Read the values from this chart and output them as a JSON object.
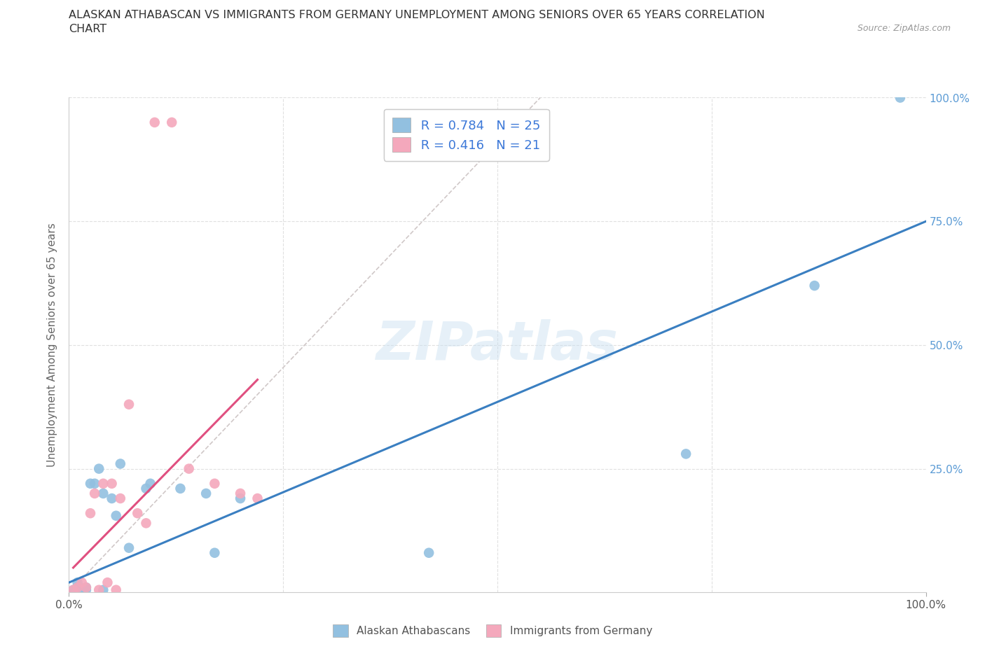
{
  "title_line1": "ALASKAN ATHABASCAN VS IMMIGRANTS FROM GERMANY UNEMPLOYMENT AMONG SENIORS OVER 65 YEARS CORRELATION",
  "title_line2": "CHART",
  "source_text": "Source: ZipAtlas.com",
  "ylabel": "Unemployment Among Seniors over 65 years",
  "xmin": 0.0,
  "xmax": 1.0,
  "ymin": 0.0,
  "ymax": 1.0,
  "xtick_labels": [
    "0.0%",
    "100.0%"
  ],
  "ytick_labels": [
    "25.0%",
    "50.0%",
    "75.0%",
    "100.0%"
  ],
  "ytick_positions": [
    0.25,
    0.5,
    0.75,
    1.0
  ],
  "legend_label_blue": "Alaskan Athabascans",
  "legend_label_pink": "Immigrants from Germany",
  "R_blue": 0.784,
  "N_blue": 25,
  "R_pink": 0.416,
  "N_pink": 21,
  "color_blue": "#92c0e0",
  "color_pink": "#f4a8bc",
  "color_trendline_blue": "#3a7fc1",
  "color_trendline_pink": "#e05080",
  "color_diagonal": "#d0c8c8",
  "blue_scatter_x": [
    0.005,
    0.01,
    0.01,
    0.015,
    0.02,
    0.02,
    0.025,
    0.03,
    0.035,
    0.04,
    0.04,
    0.05,
    0.055,
    0.06,
    0.07,
    0.09,
    0.095,
    0.13,
    0.16,
    0.17,
    0.2,
    0.42,
    0.72,
    0.87,
    0.97
  ],
  "blue_scatter_y": [
    0.005,
    0.01,
    0.02,
    0.005,
    0.01,
    0.005,
    0.22,
    0.22,
    0.25,
    0.2,
    0.005,
    0.19,
    0.155,
    0.26,
    0.09,
    0.21,
    0.22,
    0.21,
    0.2,
    0.08,
    0.19,
    0.08,
    0.28,
    0.62,
    1.0
  ],
  "pink_scatter_x": [
    0.005,
    0.01,
    0.015,
    0.02,
    0.025,
    0.03,
    0.035,
    0.04,
    0.045,
    0.05,
    0.055,
    0.06,
    0.07,
    0.08,
    0.09,
    0.1,
    0.12,
    0.14,
    0.17,
    0.2,
    0.22
  ],
  "pink_scatter_y": [
    0.005,
    0.01,
    0.02,
    0.01,
    0.16,
    0.2,
    0.005,
    0.22,
    0.02,
    0.22,
    0.005,
    0.19,
    0.38,
    0.16,
    0.14,
    0.95,
    0.95,
    0.25,
    0.22,
    0.2,
    0.19
  ],
  "trendline_blue_x0": 0.0,
  "trendline_blue_y0": 0.02,
  "trendline_blue_x1": 1.0,
  "trendline_blue_y1": 0.75,
  "trendline_pink_x0": 0.005,
  "trendline_pink_y0": 0.05,
  "trendline_pink_x1": 0.22,
  "trendline_pink_y1": 0.43,
  "watermark_text": "ZIPatlas",
  "background_color": "#ffffff",
  "grid_color": "#e0e0e0"
}
